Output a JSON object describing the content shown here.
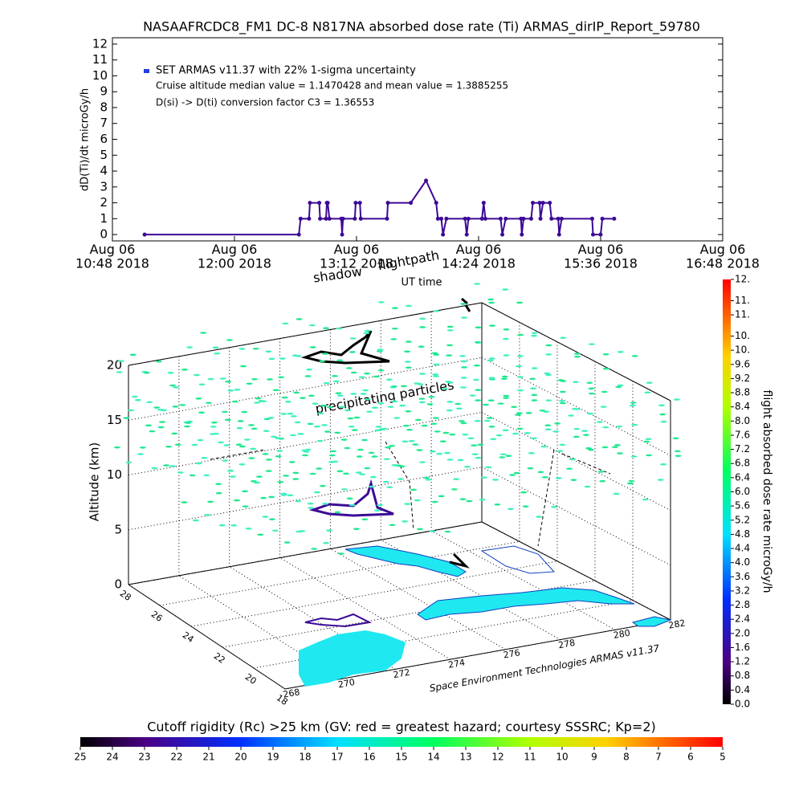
{
  "chart_data": [
    {
      "type": "line",
      "title": "NASAAFRCDC8_FM1 DC-8   N817NA absorbed dose rate (Ti) ARMAS_dirIP_Report_59780",
      "ylabel": "dD(Ti)/dt microGy/h",
      "xlabel": "UT time",
      "annotations": [
        "Cruise altitude median value = 1.1470428 and mean value = 1.3885255",
        "D(si) -> D(ti) conversion factor C3 = 1.36553"
      ],
      "legend": "upper left",
      "xlim": [
        648,
        1008
      ],
      "xticks": [
        {
          "value": 648,
          "label": "Aug 06\n10:48 2018"
        },
        {
          "value": 720,
          "label": "Aug 06\n12:00 2018"
        },
        {
          "value": 792,
          "label": "Aug 06\n13:12 2018"
        },
        {
          "value": 864,
          "label": "Aug 06\n14:24 2018"
        },
        {
          "value": 936,
          "label": "Aug 06\n15:36 2018"
        },
        {
          "value": 1008,
          "label": "Aug 06\n16:48 2018"
        }
      ],
      "ylim": [
        -0.4,
        12.4
      ],
      "yticks": [
        0,
        1,
        2,
        3,
        4,
        5,
        6,
        7,
        8,
        9,
        10,
        11,
        12
      ],
      "x": [
        667,
        758,
        759,
        764,
        764.5,
        770,
        770.5,
        774,
        774.5,
        775,
        776,
        783,
        783.5,
        784,
        791,
        791.5,
        794,
        794.5,
        810,
        810.5,
        824,
        833,
        839,
        840,
        842,
        843,
        845,
        856,
        857,
        858,
        866,
        867,
        868,
        877,
        878,
        880,
        889,
        889.5,
        890.5,
        895,
        896,
        900,
        900.5,
        902,
        906,
        907,
        911,
        911.5,
        913,
        931,
        931.5,
        936,
        937,
        944
      ],
      "series": [
        {
          "name": "SET ARMAS v11.37 with 22% 1-sigma uncertainty",
          "color": "#3c0a96",
          "values": [
            0,
            0,
            1,
            1,
            2,
            2,
            1,
            1,
            2,
            2,
            1,
            1,
            0,
            1,
            1,
            2,
            2,
            1,
            1,
            2,
            2,
            3.4,
            2,
            1,
            1,
            0,
            1,
            1,
            0,
            1,
            1,
            2,
            1,
            1,
            0,
            1,
            1,
            0,
            1,
            1,
            2,
            2,
            1,
            2,
            2,
            1,
            1,
            0,
            1,
            1,
            0,
            0,
            1,
            1
          ]
        }
      ]
    },
    {
      "type": "surface3d",
      "zlabel": "Altitude (km)",
      "zlim": [
        0,
        20
      ],
      "zticks": [
        0,
        5,
        10,
        15,
        20
      ],
      "xlim": [
        268,
        282
      ],
      "xticks": [
        268,
        270,
        272,
        274,
        276,
        278,
        280,
        282
      ],
      "ylim": [
        18,
        28
      ],
      "yticks": [
        18,
        20,
        22,
        24,
        26,
        28
      ],
      "annotations": [
        "shadow",
        "flightpath",
        "precipitating particles",
        "Space Environment Technologies ARMAS v11.37"
      ],
      "colorbar": {
        "label": "flight absorbed dose rate microGy/h",
        "clim": [
          0,
          12
        ],
        "ticks": [
          {
            "value": 0,
            "label": "0.0"
          },
          0.4,
          0.8,
          1.2,
          1.6,
          {
            "value": 2,
            "label": "2.0"
          },
          2.4,
          2.8,
          3.2,
          3.6,
          {
            "value": 4,
            "label": "4.0"
          },
          4.4,
          4.8,
          5.2,
          5.6,
          {
            "value": 6,
            "label": "6.0"
          },
          6.4,
          6.8,
          7.2,
          7.6,
          {
            "value": 8,
            "label": "8.0"
          },
          8.4,
          8.8,
          9.2,
          9.6,
          {
            "value": 10,
            "label": "10."
          },
          {
            "value": 10.4,
            "label": "10."
          },
          {
            "value": 11,
            "label": "11."
          },
          {
            "value": 11.4,
            "label": "11."
          },
          {
            "value": 12,
            "label": "12."
          }
        ]
      }
    },
    {
      "type": "colorbar",
      "title": "Cutoff rigidity (Rc) >25 km (GV: red = greatest hazard; courtesy SSSRC; Kp=2)",
      "clim": [
        25,
        5
      ],
      "ticks": [
        25,
        24,
        23,
        22,
        21,
        20,
        19,
        18,
        17,
        16,
        15,
        14,
        13,
        12,
        11,
        10,
        9,
        8,
        7,
        6,
        5
      ]
    }
  ]
}
